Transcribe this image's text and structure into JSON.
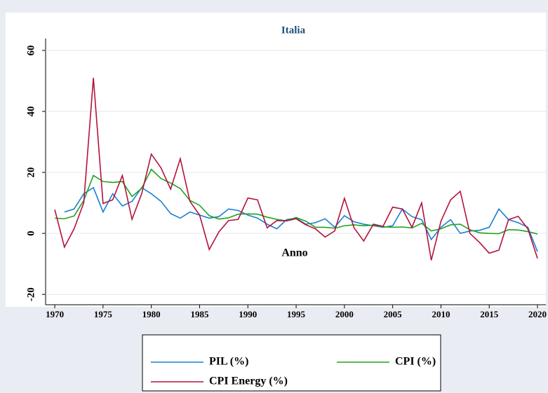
{
  "chart_data": {
    "type": "line",
    "title": "Italia",
    "x_label": "Anno",
    "x": [
      1970,
      1971,
      1972,
      1973,
      1974,
      1975,
      1976,
      1977,
      1978,
      1979,
      1980,
      1981,
      1982,
      1983,
      1984,
      1985,
      1986,
      1987,
      1988,
      1989,
      1990,
      1991,
      1992,
      1993,
      1994,
      1995,
      1996,
      1997,
      1998,
      1999,
      2000,
      2001,
      2002,
      2003,
      2004,
      2005,
      2006,
      2007,
      2008,
      2009,
      2010,
      2011,
      2012,
      2013,
      2014,
      2015,
      2016,
      2017,
      2018,
      2019,
      2020
    ],
    "series": [
      {
        "name": "PIL (%)",
        "color": "#1a7fd4",
        "values": [
          null,
          7,
          8,
          13,
          15,
          7,
          13,
          9,
          10.5,
          15,
          13,
          10.5,
          6.5,
          5,
          7,
          6,
          5,
          5.5,
          8,
          7.5,
          6,
          5,
          3,
          1.5,
          4.5,
          5,
          3,
          3.5,
          4.8,
          2,
          5.8,
          3.8,
          3,
          2.5,
          2,
          2.5,
          8,
          5.5,
          4.5,
          -2,
          2,
          4.5,
          0,
          0.8,
          1,
          2,
          8,
          4.5,
          3.5,
          2,
          -6
        ]
      },
      {
        "name": "CPI (%)",
        "color": "#1fa31f",
        "values": [
          5,
          4.8,
          5.7,
          10.8,
          19,
          17,
          16.7,
          17,
          12.1,
          14.8,
          21,
          18,
          16.5,
          14.7,
          10.8,
          9.2,
          5.8,
          4.7,
          5.1,
          6.3,
          6.4,
          6.3,
          5.3,
          4.6,
          4.1,
          5.2,
          4,
          2,
          2,
          1.7,
          2.5,
          2.8,
          2.5,
          2.7,
          2.2,
          2,
          2.1,
          1.8,
          3.3,
          0.8,
          1.5,
          2.8,
          3,
          1.2,
          0.2,
          0,
          -0.1,
          1.2,
          1.1,
          0.6,
          -0.2
        ]
      },
      {
        "name": "CPI Energy (%)",
        "color": "#b5123a",
        "values": [
          7.8,
          -4.5,
          1.5,
          10,
          51,
          9.8,
          11,
          19,
          4.6,
          13,
          26,
          21.5,
          14.5,
          24.5,
          10.5,
          6,
          -5.3,
          0.5,
          4.2,
          4.6,
          11.6,
          11,
          1.8,
          4.2,
          4.1,
          4.8,
          2.8,
          1.5,
          -1.2,
          0.8,
          11.5,
          1.8,
          -2.5,
          3,
          2.3,
          8.6,
          8,
          2,
          10,
          -8.8,
          4,
          11,
          13.8,
          0,
          -3,
          -6.5,
          -5.5,
          4.5,
          5.6,
          1.5,
          -8.2
        ]
      }
    ],
    "xlim": [
      1969.05,
      2020.87
    ],
    "xticks": [
      1970,
      1975,
      1980,
      1985,
      1990,
      1995,
      2000,
      2005,
      2010,
      2015,
      2020
    ],
    "ylim": [
      -23.4,
      63.9
    ],
    "yticks": [
      -20,
      0,
      20,
      40,
      60
    ]
  }
}
